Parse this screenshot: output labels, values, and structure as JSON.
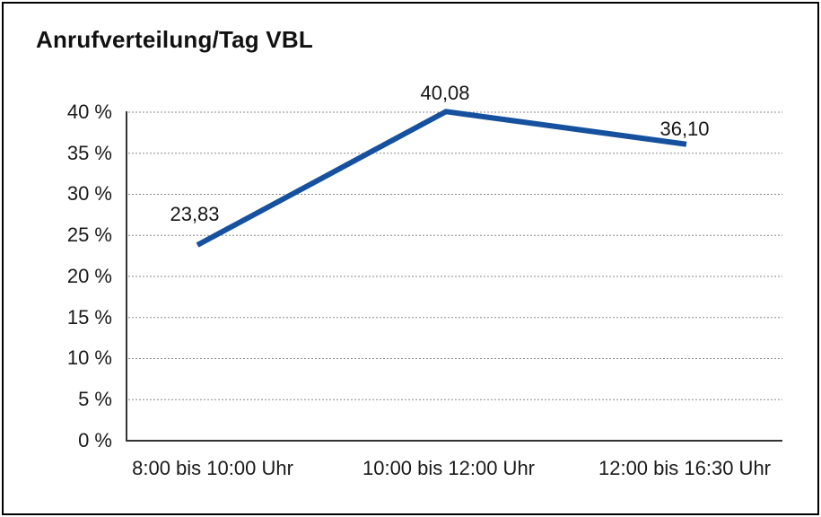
{
  "title": "Anrufverteilung/Tag VBL",
  "chart_data": {
    "type": "line",
    "title": "Anrufverteilung/Tag VBL",
    "categories": [
      "8:00 bis 10:00 Uhr",
      "10:00 bis 12:00 Uhr",
      "12:00 bis 16:30 Uhr"
    ],
    "values": [
      23.83,
      40.08,
      36.1
    ],
    "point_labels": [
      "23,83",
      "40,08",
      "36,10"
    ],
    "yticks": [
      "0 %",
      "5 %",
      "10 %",
      "15 %",
      "20 %",
      "25 %",
      "30 %",
      "35 %",
      "40 %"
    ],
    "ylim": [
      0,
      40
    ],
    "ytick_step": 5,
    "xlabel": "",
    "ylabel": "",
    "grid": "horizontal-dotted",
    "legend_position": "none",
    "line_color": "#15519E",
    "axis_color": "#333333",
    "grid_color": "#8a8a8a",
    "background_color": "#ffffff",
    "border_color": "#000000"
  }
}
